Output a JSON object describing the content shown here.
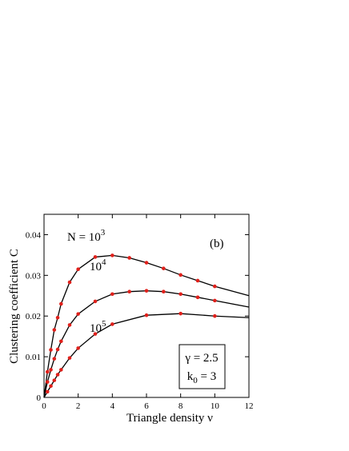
{
  "chart_data": {
    "type": "line",
    "xlabel": "Triangle density  ν",
    "ylabel": "Clustering  coefficient  C",
    "panel_label": "(b)",
    "xlim": [
      0,
      12
    ],
    "ylim": [
      0,
      0.045
    ],
    "xticks": [
      0,
      2,
      4,
      6,
      8,
      10,
      12
    ],
    "yticks": [
      0,
      0.01,
      0.02,
      0.03,
      0.04
    ],
    "line_color": "#000000",
    "marker_color": "#e0201b",
    "series": [
      {
        "label": {
          "text": "N = 10",
          "sup": "3"
        },
        "x": [
          0,
          0.2,
          0.4,
          0.6,
          0.8,
          1,
          1.5,
          2,
          3,
          4,
          5,
          6,
          7,
          8,
          9,
          10,
          12
        ],
        "values": [
          0,
          0.0063,
          0.0117,
          0.0166,
          0.0196,
          0.023,
          0.0283,
          0.0315,
          0.0345,
          0.0349,
          0.0343,
          0.0331,
          0.0317,
          0.0301,
          0.0287,
          0.0273,
          0.025
        ]
      },
      {
        "label": {
          "text": "10",
          "sup": "4"
        },
        "x": [
          0,
          0.2,
          0.4,
          0.6,
          0.8,
          1,
          1.5,
          2,
          3,
          4,
          5,
          6,
          7,
          8,
          9,
          10,
          12
        ],
        "values": [
          0,
          0.0038,
          0.0068,
          0.0095,
          0.0118,
          0.0138,
          0.0178,
          0.0205,
          0.0236,
          0.0254,
          0.026,
          0.0262,
          0.026,
          0.0254,
          0.0246,
          0.0238,
          0.0222
        ]
      },
      {
        "label": {
          "text": "10",
          "sup": "5"
        },
        "x": [
          0,
          0.2,
          0.4,
          0.6,
          0.8,
          1,
          1.5,
          2,
          3,
          4,
          6,
          8,
          10,
          12
        ],
        "values": [
          0,
          0.0014,
          0.0028,
          0.0042,
          0.0056,
          0.0068,
          0.0097,
          0.0121,
          0.0156,
          0.018,
          0.0202,
          0.0206,
          0.02,
          0.0196
        ]
      }
    ],
    "info_box": [
      {
        "text": "γ = 2.5"
      },
      {
        "text": "k",
        "sub": "0",
        "rest": " = 3"
      }
    ]
  }
}
